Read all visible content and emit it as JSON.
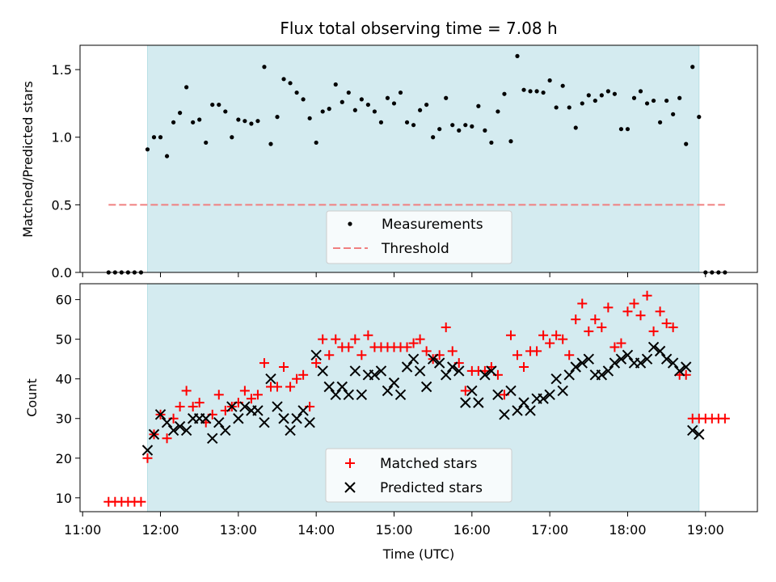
{
  "chart_data": [
    {
      "type": "scatter",
      "title": "Flux total observing time = 7.08 h",
      "xlabel": "",
      "ylabel": "Matched/Predicted stars",
      "xlim": [
        "10:58",
        "19:40"
      ],
      "ylim": [
        0,
        1.68
      ],
      "yticks": [
        0.0,
        0.5,
        1.0,
        1.5
      ],
      "ytick_labels": [
        "0.0",
        "0.5",
        "1.0",
        "1.5"
      ],
      "shaded_span": [
        "11:50",
        "18:55"
      ],
      "threshold": {
        "value": 0.5,
        "x_start": "11:20",
        "x_end": "19:15"
      },
      "legend": {
        "position": "lower center",
        "entries": [
          "Measurements",
          "Threshold"
        ]
      },
      "series": [
        {
          "name": "Measurements",
          "x": [
            "11:20",
            "11:25",
            "11:30",
            "11:35",
            "11:40",
            "11:45",
            "11:50",
            "11:55",
            "12:00",
            "12:05",
            "12:10",
            "12:15",
            "12:20",
            "12:25",
            "12:30",
            "12:35",
            "12:40",
            "12:45",
            "12:50",
            "12:55",
            "13:00",
            "13:05",
            "13:10",
            "13:15",
            "13:20",
            "13:25",
            "13:30",
            "13:35",
            "13:40",
            "13:45",
            "13:50",
            "13:55",
            "14:00",
            "14:05",
            "14:10",
            "14:15",
            "14:20",
            "14:25",
            "14:30",
            "14:35",
            "14:40",
            "14:45",
            "14:50",
            "14:55",
            "15:00",
            "15:05",
            "15:10",
            "15:15",
            "15:20",
            "15:25",
            "15:30",
            "15:35",
            "15:40",
            "15:45",
            "15:50",
            "15:55",
            "16:00",
            "16:05",
            "16:10",
            "16:15",
            "16:20",
            "16:25",
            "16:30",
            "16:35",
            "16:40",
            "16:45",
            "16:50",
            "16:55",
            "17:00",
            "17:05",
            "17:10",
            "17:15",
            "17:20",
            "17:25",
            "17:30",
            "17:35",
            "17:40",
            "17:45",
            "17:50",
            "17:55",
            "18:00",
            "18:05",
            "18:10",
            "18:15",
            "18:20",
            "18:25",
            "18:30",
            "18:35",
            "18:40",
            "18:45",
            "18:50",
            "18:55",
            "19:00",
            "19:05",
            "19:10",
            "19:15"
          ],
          "y": [
            0,
            0,
            0,
            0,
            0,
            0,
            0.91,
            1.0,
            1.0,
            0.86,
            1.11,
            1.18,
            1.37,
            1.11,
            1.13,
            0.96,
            1.24,
            1.24,
            1.19,
            1.0,
            1.13,
            1.12,
            1.1,
            1.12,
            1.52,
            0.95,
            1.15,
            1.43,
            1.4,
            1.33,
            1.28,
            1.14,
            0.96,
            1.19,
            1.21,
            1.39,
            1.26,
            1.33,
            1.2,
            1.28,
            1.24,
            1.19,
            1.11,
            1.29,
            1.25,
            1.33,
            1.11,
            1.09,
            1.2,
            1.24,
            1.0,
            1.06,
            1.29,
            1.09,
            1.05,
            1.09,
            1.08,
            1.23,
            1.05,
            0.96,
            1.19,
            1.32,
            0.97,
            1.6,
            1.35,
            1.34,
            1.34,
            1.33,
            1.42,
            1.22,
            1.38,
            1.22,
            1.07,
            1.25,
            1.31,
            1.27,
            1.31,
            1.34,
            1.32,
            1.06,
            1.06,
            1.29,
            1.34,
            1.25,
            1.27,
            1.11,
            1.27,
            1.17,
            1.29,
            0.95,
            1.52,
            1.15,
            0,
            0,
            0,
            0
          ]
        }
      ]
    },
    {
      "type": "scatter",
      "title": "",
      "xlabel": "Time (UTC)",
      "ylabel": "Count",
      "xlim": [
        "10:58",
        "19:40"
      ],
      "ylim": [
        6.5,
        64
      ],
      "yticks": [
        10,
        20,
        30,
        40,
        50,
        60
      ],
      "ytick_labels": [
        "10",
        "20",
        "30",
        "40",
        "50",
        "60"
      ],
      "xticks": [
        "11:00",
        "12:00",
        "13:00",
        "14:00",
        "15:00",
        "16:00",
        "17:00",
        "18:00",
        "19:00"
      ],
      "shaded_span": [
        "11:50",
        "18:55"
      ],
      "legend": {
        "position": "lower center",
        "entries": [
          "Matched stars",
          "Predicted stars"
        ]
      },
      "series": [
        {
          "name": "Matched stars",
          "x": [
            "11:20",
            "11:25",
            "11:30",
            "11:35",
            "11:40",
            "11:45",
            "11:50",
            "11:55",
            "12:00",
            "12:05",
            "12:10",
            "12:15",
            "12:20",
            "12:25",
            "12:30",
            "12:35",
            "12:40",
            "12:45",
            "12:50",
            "12:55",
            "13:00",
            "13:05",
            "13:10",
            "13:15",
            "13:20",
            "13:25",
            "13:30",
            "13:35",
            "13:40",
            "13:45",
            "13:50",
            "13:55",
            "14:00",
            "14:05",
            "14:10",
            "14:15",
            "14:20",
            "14:25",
            "14:30",
            "14:35",
            "14:40",
            "14:45",
            "14:50",
            "14:55",
            "15:00",
            "15:05",
            "15:10",
            "15:15",
            "15:20",
            "15:25",
            "15:30",
            "15:35",
            "15:40",
            "15:45",
            "15:50",
            "15:55",
            "16:00",
            "16:05",
            "16:10",
            "16:15",
            "16:20",
            "16:25",
            "16:30",
            "16:35",
            "16:40",
            "16:45",
            "16:50",
            "16:55",
            "17:00",
            "17:05",
            "17:10",
            "17:15",
            "17:20",
            "17:25",
            "17:30",
            "17:35",
            "17:40",
            "17:45",
            "17:50",
            "17:55",
            "18:00",
            "18:05",
            "18:10",
            "18:15",
            "18:20",
            "18:25",
            "18:30",
            "18:35",
            "18:40",
            "18:45",
            "18:50",
            "18:55",
            "19:00",
            "19:05",
            "19:10",
            "19:15"
          ],
          "y": [
            9,
            9,
            9,
            9,
            9,
            9,
            20,
            26,
            31,
            25,
            30,
            33,
            37,
            33,
            34,
            29,
            31,
            36,
            32,
            33,
            34,
            37,
            35,
            36,
            44,
            38,
            38,
            43,
            38,
            40,
            41,
            33,
            44,
            50,
            46,
            50,
            48,
            48,
            50,
            46,
            51,
            48,
            48,
            48,
            48,
            48,
            48,
            49,
            50,
            47,
            45,
            46,
            53,
            47,
            44,
            37,
            42,
            42,
            42,
            43,
            41,
            36,
            51,
            46,
            43,
            47,
            47,
            51,
            49,
            51,
            50,
            46,
            55,
            59,
            52,
            55,
            53,
            58,
            48,
            49,
            57,
            59,
            56,
            61,
            52,
            57,
            54,
            53,
            41,
            41,
            30,
            30,
            30,
            30,
            30,
            30
          ]
        },
        {
          "name": "Predicted stars",
          "x": [
            "11:50",
            "11:55",
            "12:00",
            "12:05",
            "12:10",
            "12:15",
            "12:20",
            "12:25",
            "12:30",
            "12:35",
            "12:40",
            "12:45",
            "12:50",
            "12:55",
            "13:00",
            "13:05",
            "13:10",
            "13:15",
            "13:20",
            "13:25",
            "13:30",
            "13:35",
            "13:40",
            "13:45",
            "13:50",
            "13:55",
            "14:00",
            "14:05",
            "14:10",
            "14:15",
            "14:20",
            "14:25",
            "14:30",
            "14:35",
            "14:40",
            "14:45",
            "14:50",
            "14:55",
            "15:00",
            "15:05",
            "15:10",
            "15:15",
            "15:20",
            "15:25",
            "15:30",
            "15:35",
            "15:40",
            "15:45",
            "15:50",
            "15:55",
            "16:00",
            "16:05",
            "16:10",
            "16:15",
            "16:20",
            "16:25",
            "16:30",
            "16:35",
            "16:40",
            "16:45",
            "16:50",
            "16:55",
            "17:00",
            "17:05",
            "17:10",
            "17:15",
            "17:20",
            "17:25",
            "17:30",
            "17:35",
            "17:40",
            "17:45",
            "17:50",
            "17:55",
            "18:00",
            "18:05",
            "18:10",
            "18:15",
            "18:20",
            "18:25",
            "18:30",
            "18:35",
            "18:40",
            "18:45",
            "18:50",
            "18:55"
          ],
          "y": [
            22,
            26,
            31,
            29,
            27,
            28,
            27,
            30,
            30,
            30,
            25,
            29,
            27,
            33,
            30,
            33,
            32,
            32,
            29,
            40,
            33,
            30,
            27,
            30,
            32,
            29,
            46,
            42,
            38,
            36,
            38,
            36,
            42,
            36,
            41,
            41,
            42,
            37,
            39,
            36,
            43,
            45,
            42,
            38,
            45,
            44,
            41,
            43,
            42,
            34,
            37,
            34,
            41,
            42,
            36,
            31,
            37,
            32,
            34,
            32,
            35,
            35,
            36,
            40,
            37,
            41,
            43,
            44,
            45,
            41,
            41,
            42,
            44,
            45,
            46,
            44,
            44,
            45,
            48,
            47,
            45,
            44,
            42,
            43,
            27,
            26
          ]
        }
      ]
    }
  ],
  "colors": {
    "span": "#d4ebf0",
    "span_edge": "#b8dfe6",
    "threshold": "#f08080",
    "measurements": "#000000",
    "matched": "#ff0000",
    "predicted": "#000000"
  }
}
